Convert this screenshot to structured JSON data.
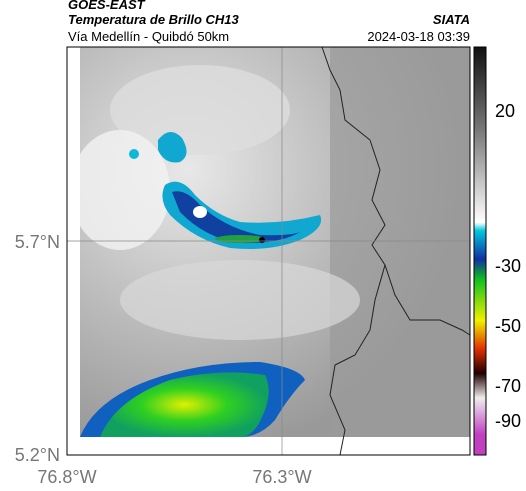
{
  "header": {
    "product": "GOES-EAST",
    "title": "Temperatura de Brillo CH13",
    "subtitle": "Vía Medellín - Quibdó 50km",
    "source": "SIATA",
    "datetime": "2024-03-18 03:39"
  },
  "axes": {
    "y_labels": [
      "5.7°N",
      "5.2°N"
    ],
    "x_labels": [
      "76.8°W",
      "76.3°W"
    ]
  },
  "colorbar": {
    "ticks": [
      "20",
      "-30",
      "-50",
      "-70",
      "-90"
    ]
  }
}
